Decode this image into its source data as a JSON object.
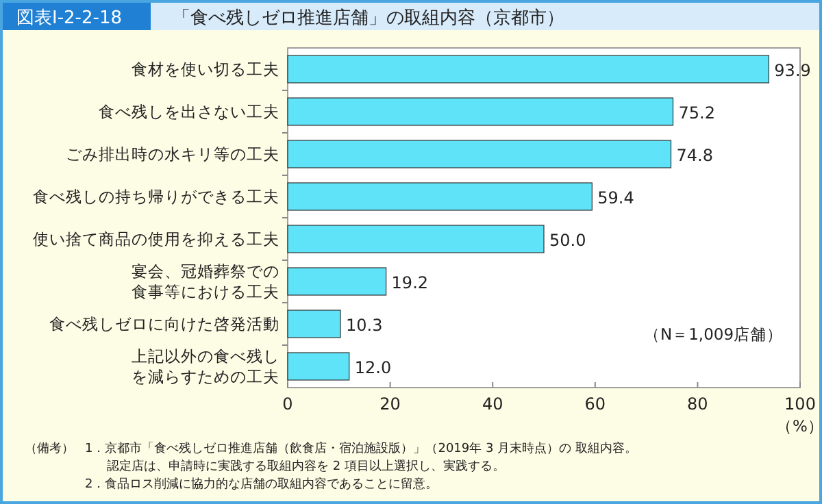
{
  "chart_data": {
    "type": "bar",
    "orientation": "horizontal",
    "subtitle": "図表Ⅰ-2-2-18",
    "title": "「食べ残しゼロ推進店舗」の取組内容（京都市）",
    "categories": [
      "食材を使い切る工夫",
      "食べ残しを出さない工夫",
      "ごみ排出時の水キリ等の工夫",
      "食べ残しの持ち帰りができる工夫",
      "使い捨て商品の使用を抑える工夫",
      "宴会、冠婚葬祭での食事等における工夫",
      "食べ残しゼロに向けた啓発活動",
      "上記以外の食べ残しを減らすための工夫"
    ],
    "values": [
      93.9,
      75.2,
      74.8,
      59.4,
      50.0,
      19.2,
      10.3,
      12.0
    ],
    "value_labels": [
      "93.9",
      "75.2",
      "74.8",
      "59.4",
      "50.0",
      "19.2",
      "10.3",
      "12.0"
    ],
    "color": "#5ee3f8",
    "xlim": [
      0,
      100
    ],
    "xticks": [
      0,
      20,
      40,
      60,
      80,
      100
    ],
    "xlabel": "（%）",
    "annotations": [
      "（N＝1,009店舗）",
      "（備考）",
      "1．京都市「食べ残しゼロ推進店舗（飲食店・宿泊施設版）」（2019年 3 月末時点）の 取組内容。",
      "認定店は、申請時に実践する取組内容を 2 項目以上選択し、実践する。",
      "2．食品ロス削減に協力的な店舗の取組内容であることに留意。"
    ]
  }
}
